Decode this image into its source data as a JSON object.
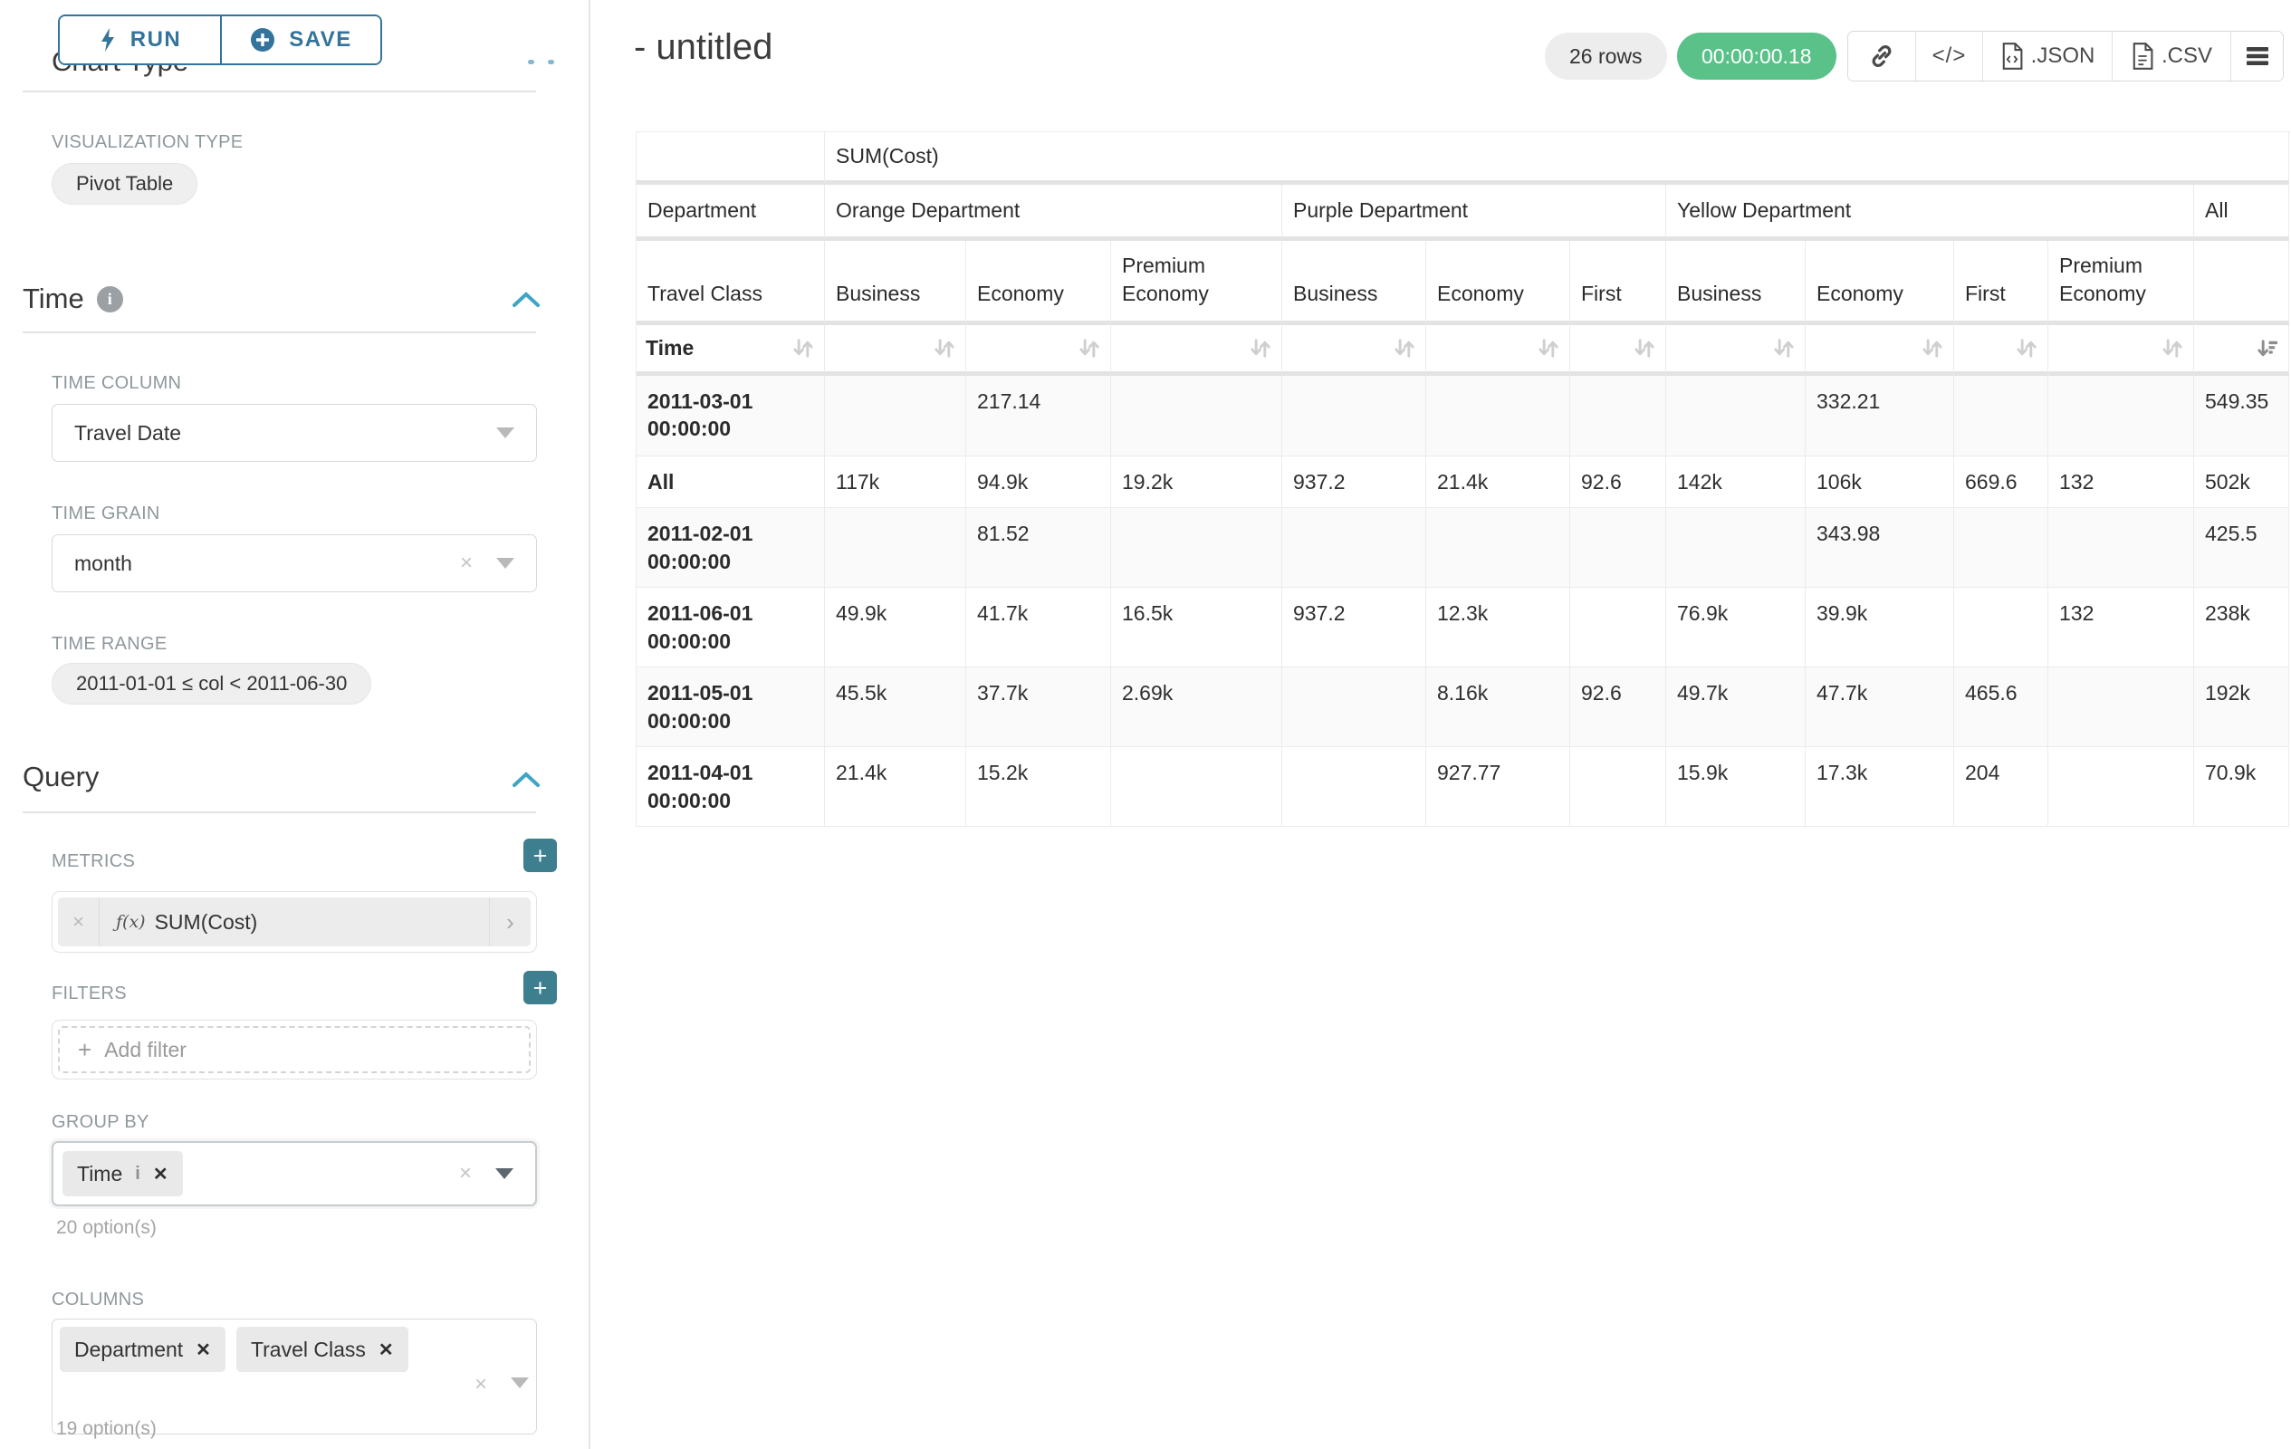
{
  "colors": {
    "primary_teal": "#34739b",
    "add_button_teal": "#3d7e8f",
    "collapse_chevron_blue": "#3fa5c5",
    "timer_green": "#5ac189",
    "pill_gray": "#efefef",
    "row_stripe": "#fafafa"
  },
  "actions": {
    "run_label": "RUN",
    "save_label": "SAVE",
    "run_icon": "lightning-bolt-icon",
    "save_icon": "plus-circle-icon"
  },
  "sidebar": {
    "cut_heading": "Chart Type",
    "viz_type": {
      "label": "VISUALIZATION TYPE",
      "value": "Pivot Table"
    },
    "time": {
      "heading": "Time",
      "time_column": {
        "label": "TIME COLUMN",
        "value": "Travel Date"
      },
      "time_grain": {
        "label": "TIME GRAIN",
        "value": "month"
      },
      "time_range": {
        "label": "TIME RANGE",
        "value": "2011-01-01 ≤ col < 2011-06-30"
      }
    },
    "query": {
      "heading": "Query",
      "metrics": {
        "label": "METRICS",
        "chip_fx": "ƒ(x)",
        "chip_name": "SUM(Cost)"
      },
      "filters": {
        "label": "FILTERS",
        "add_placeholder": "Add filter"
      },
      "group_by": {
        "label": "GROUP BY",
        "chips": [
          "Time"
        ],
        "hint": "20 option(s)"
      },
      "columns": {
        "label": "COLUMNS",
        "chips": [
          "Department",
          "Travel Class"
        ],
        "hint": "19 option(s)"
      }
    }
  },
  "main": {
    "title": "- untitled",
    "row_count": "26 rows",
    "timer": "00:00:00.18",
    "toolbar_icons": [
      "link-icon",
      "code-icon",
      "json-file-icon",
      "csv-file-icon",
      "menu-icon"
    ],
    "export_json_label": ".JSON",
    "export_csv_label": ".CSV"
  },
  "chart_data": {
    "type": "table",
    "metric": "SUM(Cost)",
    "row_dims": [
      "Department",
      "Travel Class",
      "Time"
    ],
    "column_groups": [
      {
        "label": "Orange Department",
        "columns": [
          "Business",
          "Economy",
          "Premium Economy"
        ]
      },
      {
        "label": "Purple Department",
        "columns": [
          "Business",
          "Economy",
          "First"
        ]
      },
      {
        "label": "Yellow Department",
        "columns": [
          "Business",
          "Economy",
          "First",
          "Premium Economy"
        ]
      },
      {
        "label": "All",
        "columns": [
          ""
        ]
      }
    ],
    "sort": {
      "column": "All",
      "direction": "desc"
    },
    "rows": [
      {
        "label": "2011-03-01 00:00:00",
        "values": [
          "",
          "217.14",
          "",
          "",
          "",
          "",
          "",
          "332.21",
          "",
          "",
          "549.35"
        ]
      },
      {
        "label": "All",
        "values": [
          "117k",
          "94.9k",
          "19.2k",
          "937.2",
          "21.4k",
          "92.6",
          "142k",
          "106k",
          "669.6",
          "132",
          "502k"
        ]
      },
      {
        "label": "2011-02-01 00:00:00",
        "values": [
          "",
          "81.52",
          "",
          "",
          "",
          "",
          "",
          "343.98",
          "",
          "",
          "425.5"
        ]
      },
      {
        "label": "2011-06-01 00:00:00",
        "values": [
          "49.9k",
          "41.7k",
          "16.5k",
          "937.2",
          "12.3k",
          "",
          "76.9k",
          "39.9k",
          "",
          "132",
          "238k"
        ]
      },
      {
        "label": "2011-05-01 00:00:00",
        "values": [
          "45.5k",
          "37.7k",
          "2.69k",
          "",
          "8.16k",
          "92.6",
          "49.7k",
          "47.7k",
          "465.6",
          "",
          "192k"
        ]
      },
      {
        "label": "2011-04-01 00:00:00",
        "values": [
          "21.4k",
          "15.2k",
          "",
          "",
          "927.77",
          "",
          "15.9k",
          "17.3k",
          "204",
          "",
          "70.9k"
        ]
      }
    ]
  }
}
